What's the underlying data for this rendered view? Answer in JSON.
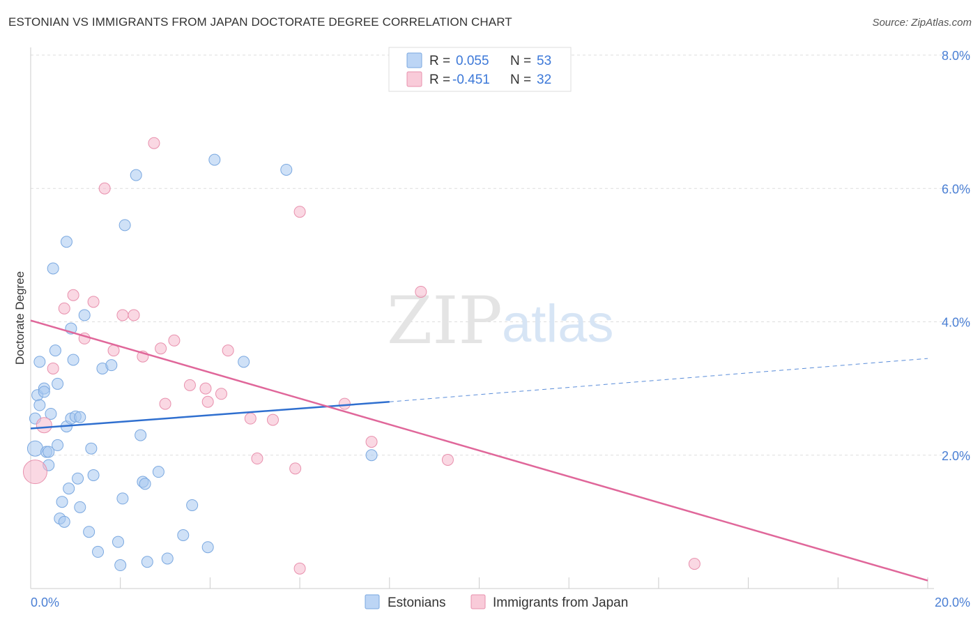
{
  "title": "ESTONIAN VS IMMIGRANTS FROM JAPAN DOCTORATE DEGREE CORRELATION CHART",
  "source": "Source: ZipAtlas.com",
  "watermark": {
    "zip": "ZIP",
    "atlas": "atlas"
  },
  "legend": {
    "rows": [
      {
        "r_label": "R =",
        "r_value": "0.055",
        "n_label": "N =",
        "n_value": "53",
        "color": "#a8c8f0"
      },
      {
        "r_label": "R =",
        "r_value": "-0.451",
        "n_label": "N =",
        "n_value": "32",
        "color": "#f5b8cc"
      }
    ]
  },
  "chart_data": {
    "type": "scatter",
    "title": "ESTONIAN VS IMMIGRANTS FROM JAPAN DOCTORATE DEGREE CORRELATION CHART",
    "xlabel": "",
    "ylabel": "Doctorate Degree",
    "xlim": [
      0,
      20
    ],
    "ylim": [
      0,
      8
    ],
    "x_tick_labels": [
      "0.0%",
      "20.0%"
    ],
    "y_ticks": [
      2,
      4,
      6,
      8
    ],
    "y_tick_labels": [
      "2.0%",
      "4.0%",
      "6.0%",
      "8.0%"
    ],
    "grid": true,
    "series": [
      {
        "name": "Estonians",
        "color": "#a8c8f0",
        "stroke": "#7aa8e0",
        "points": [
          [
            0.1,
            2.1
          ],
          [
            0.1,
            2.55
          ],
          [
            0.15,
            2.9
          ],
          [
            0.2,
            2.75
          ],
          [
            0.2,
            3.4
          ],
          [
            0.3,
            3.0
          ],
          [
            0.3,
            2.95
          ],
          [
            0.35,
            2.05
          ],
          [
            0.4,
            2.05
          ],
          [
            0.4,
            1.85
          ],
          [
            0.45,
            2.62
          ],
          [
            0.5,
            4.8
          ],
          [
            0.55,
            3.57
          ],
          [
            0.6,
            3.07
          ],
          [
            0.6,
            2.15
          ],
          [
            0.65,
            1.05
          ],
          [
            0.7,
            1.3
          ],
          [
            0.75,
            1.0
          ],
          [
            0.8,
            5.2
          ],
          [
            0.8,
            2.43
          ],
          [
            0.85,
            1.5
          ],
          [
            0.9,
            2.55
          ],
          [
            0.9,
            3.9
          ],
          [
            0.95,
            3.43
          ],
          [
            1.0,
            2.58
          ],
          [
            1.05,
            1.65
          ],
          [
            1.1,
            1.22
          ],
          [
            1.1,
            2.57
          ],
          [
            1.2,
            4.1
          ],
          [
            1.3,
            0.85
          ],
          [
            1.35,
            2.1
          ],
          [
            1.4,
            1.7
          ],
          [
            1.5,
            0.55
          ],
          [
            1.6,
            3.3
          ],
          [
            1.8,
            3.35
          ],
          [
            1.95,
            0.7
          ],
          [
            2.0,
            0.35
          ],
          [
            2.05,
            1.35
          ],
          [
            2.1,
            5.45
          ],
          [
            2.35,
            6.2
          ],
          [
            2.45,
            2.3
          ],
          [
            2.5,
            1.6
          ],
          [
            2.55,
            1.57
          ],
          [
            2.6,
            0.4
          ],
          [
            2.85,
            1.75
          ],
          [
            3.05,
            0.45
          ],
          [
            3.4,
            0.8
          ],
          [
            3.6,
            1.25
          ],
          [
            3.95,
            0.62
          ],
          [
            4.1,
            6.43
          ],
          [
            4.75,
            3.4
          ],
          [
            5.7,
            6.28
          ],
          [
            7.6,
            2.0
          ]
        ],
        "trend": {
          "x_start": 0,
          "y_start": 2.4,
          "x_solid_end": 8.0,
          "y_solid_end": 2.8,
          "x_end": 20,
          "y_end": 3.45
        }
      },
      {
        "name": "Immigrants from Japan",
        "color": "#f5b8cc",
        "stroke": "#e890ad",
        "points": [
          [
            0.1,
            1.75
          ],
          [
            0.3,
            2.45
          ],
          [
            0.5,
            3.3
          ],
          [
            0.75,
            4.2
          ],
          [
            0.95,
            4.4
          ],
          [
            1.2,
            3.75
          ],
          [
            1.4,
            4.3
          ],
          [
            1.65,
            6.0
          ],
          [
            1.85,
            3.57
          ],
          [
            2.05,
            4.1
          ],
          [
            2.3,
            4.1
          ],
          [
            2.5,
            3.48
          ],
          [
            2.75,
            6.68
          ],
          [
            2.9,
            3.6
          ],
          [
            3.0,
            2.77
          ],
          [
            3.2,
            3.72
          ],
          [
            3.55,
            3.05
          ],
          [
            3.9,
            3.0
          ],
          [
            3.95,
            2.8
          ],
          [
            4.25,
            2.92
          ],
          [
            4.4,
            3.57
          ],
          [
            4.9,
            2.55
          ],
          [
            5.05,
            1.95
          ],
          [
            5.4,
            2.53
          ],
          [
            5.9,
            1.8
          ],
          [
            6.0,
            5.65
          ],
          [
            6.0,
            0.3
          ],
          [
            7.0,
            2.77
          ],
          [
            7.6,
            2.2
          ],
          [
            8.7,
            4.45
          ],
          [
            9.3,
            1.93
          ],
          [
            14.8,
            0.37
          ]
        ],
        "trend": {
          "x_start": 0,
          "y_start": 4.02,
          "x_end": 20,
          "y_end": 0.12
        }
      }
    ]
  }
}
